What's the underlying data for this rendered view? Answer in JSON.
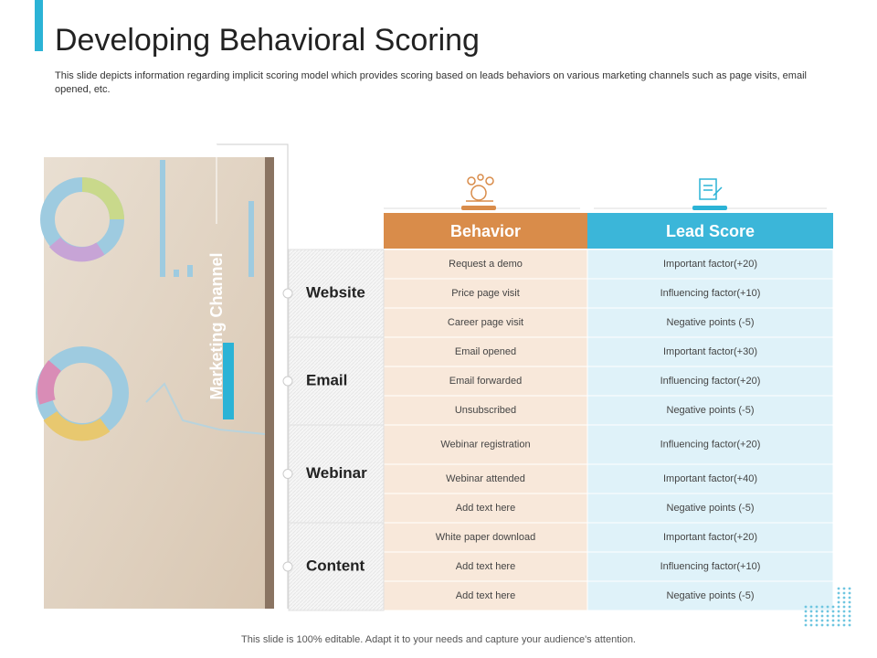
{
  "header": {
    "title": "Developing Behavioral Scoring",
    "description": "This slide depicts information regarding implicit scoring model which provides scoring based on leads behaviors on various marketing channels such as page visits, email opened, etc."
  },
  "side_label": "Marketing Channel",
  "table": {
    "columns": [
      "Behavior",
      "Lead Score"
    ],
    "groups": [
      {
        "channel": "Website",
        "rows": [
          [
            "Request a demo",
            "Important factor(+20)"
          ],
          [
            "Price page visit",
            "Influencing factor(+10)"
          ],
          [
            "Career page visit",
            "Negative points (-5)"
          ]
        ]
      },
      {
        "channel": "Email",
        "rows": [
          [
            "Email opened",
            "Important factor(+30)"
          ],
          [
            "Email forwarded",
            "Influencing factor(+20)"
          ],
          [
            "Unsubscribed",
            "Negative points (-5)"
          ]
        ]
      },
      {
        "channel": "Webinar",
        "rows": [
          [
            "Webinar registration",
            "Influencing factor(+20)"
          ],
          [
            "Webinar attended",
            "Important factor(+40)"
          ],
          [
            "Add text here",
            "Negative points (-5)"
          ]
        ]
      },
      {
        "channel": "Content",
        "rows": [
          [
            "White paper download",
            "Important factor(+20)"
          ],
          [
            "Add text here",
            "Influencing factor(+10)"
          ],
          [
            "Add text here",
            "Negative points (-5)"
          ]
        ]
      }
    ]
  },
  "footer": "This slide is 100% editable. Adapt it to your needs and capture your audience's attention."
}
